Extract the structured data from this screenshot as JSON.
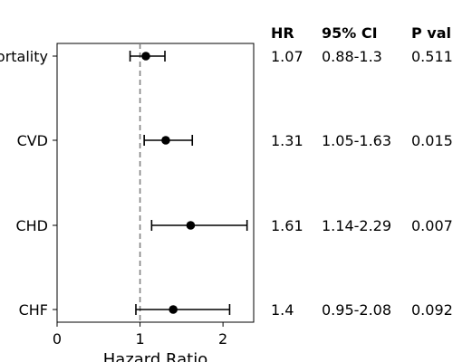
{
  "chart_data": {
    "type": "forest",
    "xlabel": "Hazard Ratio",
    "xlim": [
      0,
      2.37
    ],
    "xticks": [
      0,
      1,
      2
    ],
    "reference_line": 1,
    "table_headers": [
      "HR",
      "95% CI",
      "P val"
    ],
    "rows": [
      {
        "label": "Mortality",
        "hr": 1.07,
        "lo": 0.88,
        "hi": 1.3,
        "hr_text": "1.07",
        "ci_text": "0.88-1.3",
        "p_text": "0.511"
      },
      {
        "label": "CVD",
        "hr": 1.31,
        "lo": 1.05,
        "hi": 1.63,
        "hr_text": "1.31",
        "ci_text": "1.05-1.63",
        "p_text": "0.015"
      },
      {
        "label": "CHD",
        "hr": 1.61,
        "lo": 1.14,
        "hi": 2.29,
        "hr_text": "1.61",
        "ci_text": "1.14-2.29",
        "p_text": "0.007"
      },
      {
        "label": "CHF",
        "hr": 1.4,
        "lo": 0.95,
        "hi": 2.08,
        "hr_text": "1.4",
        "ci_text": "0.95-2.08",
        "p_text": "0.092"
      }
    ]
  }
}
